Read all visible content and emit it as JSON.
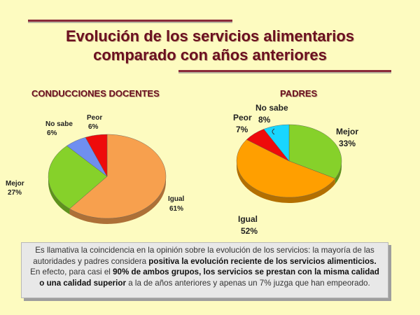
{
  "title_line1": "Evolución de los servicios alimentarios",
  "title_line2": "comparado con años anteriores",
  "summary": {
    "t1": "Es llamativa la coincidencia en la opinión sobre la evolución de los servicios: la mayoría de las autoridades y padres considera ",
    "b1": "positiva la evolución reciente de los servicios alimenticios.",
    "t2": " En efecto, para casi el ",
    "b2": "90% de ambos grupos, los servicios se prestan con la misma calidad o una calidad superior",
    "t3": " a la de años anteriores y apenas un 7% juzga que han empeorado."
  },
  "chart_data": [
    {
      "type": "pie",
      "title": "CONDUCCIONES DOCENTES",
      "slices": [
        {
          "label": "Igual",
          "value": 61,
          "pct_text": "61%",
          "color": "#f7a04e"
        },
        {
          "label": "Mejor",
          "value": 27,
          "pct_text": "27%",
          "color": "#86d12a"
        },
        {
          "label": "No sabe",
          "value": 6,
          "pct_text": "6%",
          "color": "#6f8ff0"
        },
        {
          "label": "Peor",
          "value": 6,
          "pct_text": "6%",
          "color": "#ee0b0b"
        }
      ]
    },
    {
      "type": "pie",
      "title": "PADRES",
      "slices": [
        {
          "label": "Mejor",
          "value": 33,
          "pct_text": "33%",
          "color": "#86d12a"
        },
        {
          "label": "Igual",
          "value": 52,
          "pct_text": "52%",
          "color": "#ff9f00"
        },
        {
          "label": "Peor",
          "value": 7,
          "pct_text": "7%",
          "color": "#ee0b0b"
        },
        {
          "label": "No sabe",
          "value": 8,
          "pct_text": "8%",
          "color": "#18d6ff"
        }
      ]
    }
  ]
}
